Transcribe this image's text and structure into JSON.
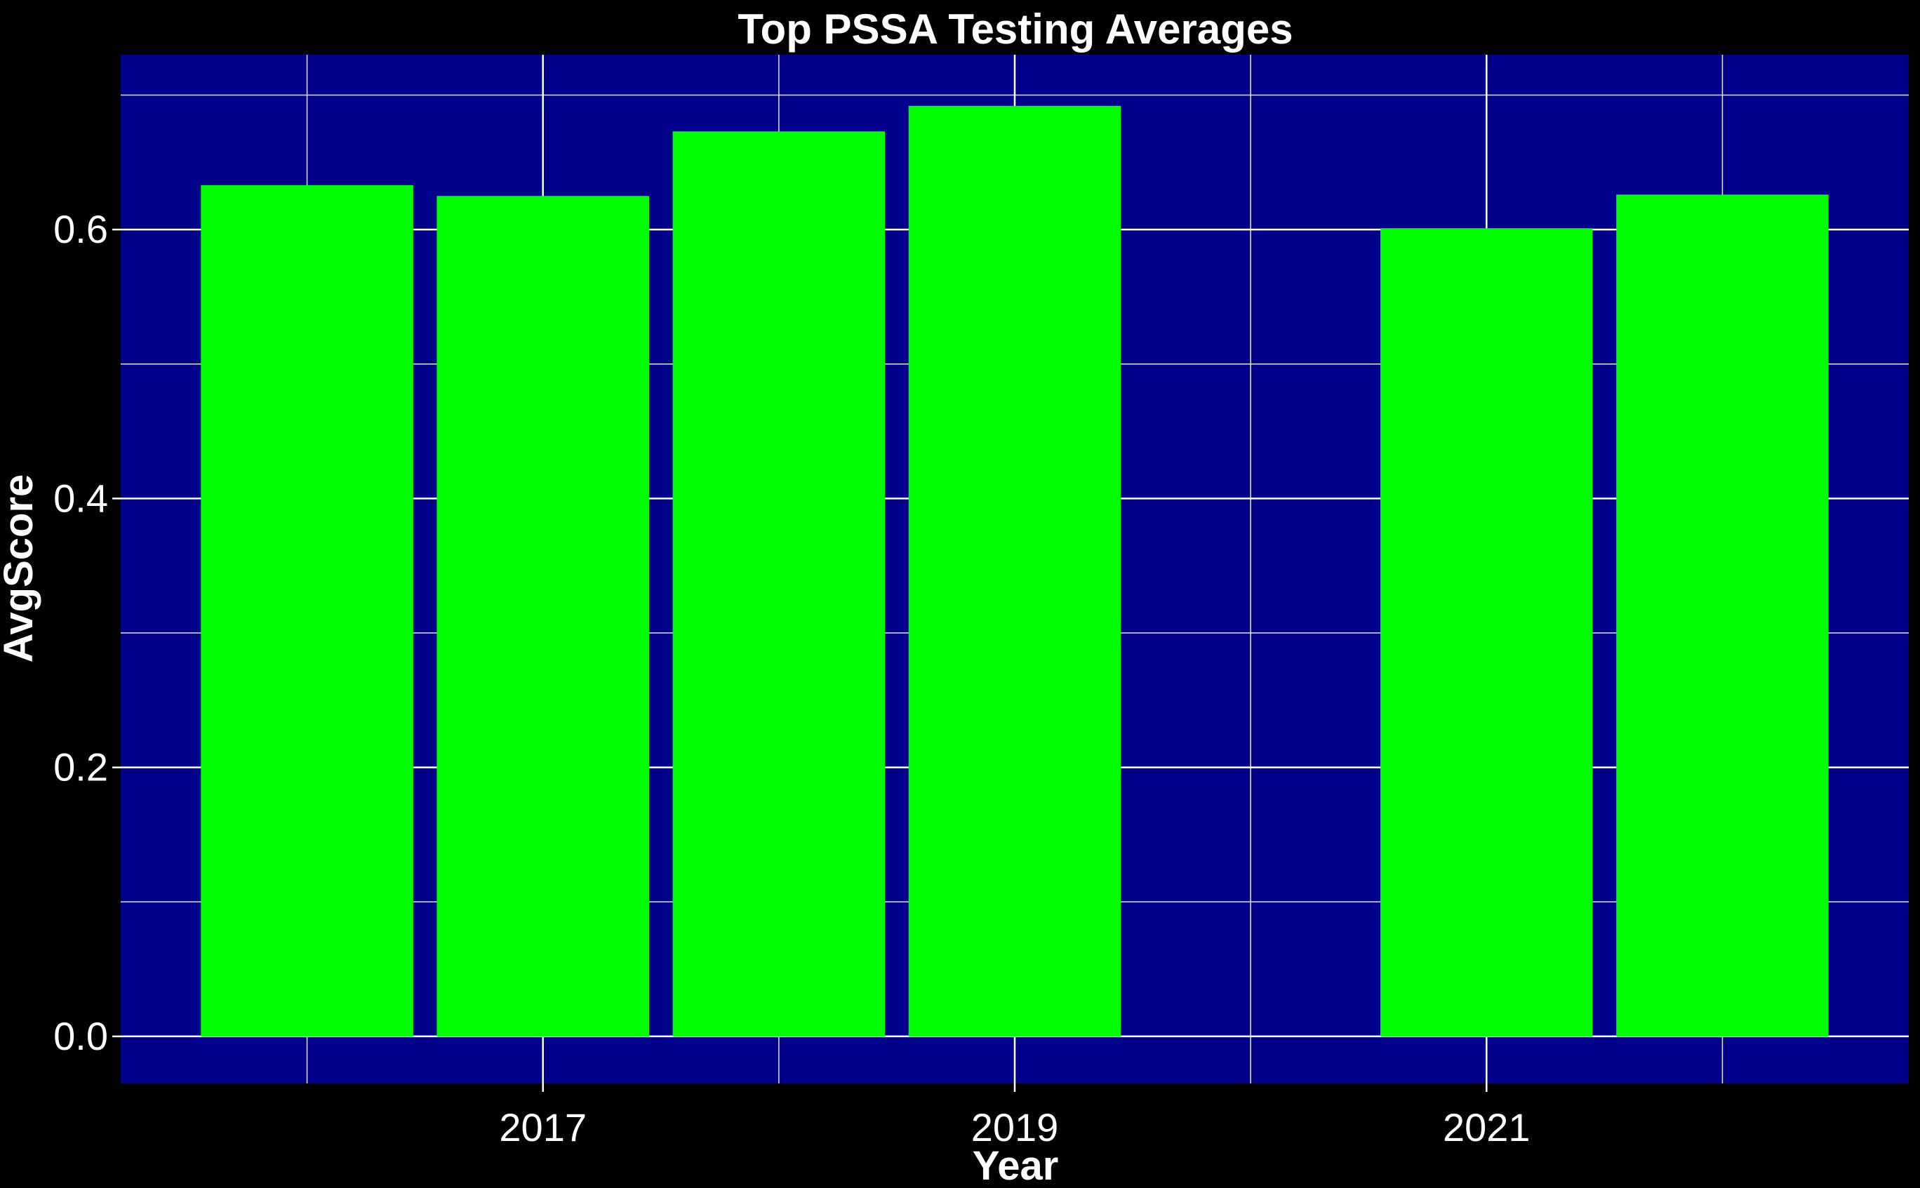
{
  "colors": {
    "page_background": "#000000",
    "panel_background": "#00008B",
    "bar_fill": "#00FF00",
    "grid": "#FFFFFF",
    "text": "#FFFFFF"
  },
  "chart_data": {
    "type": "bar",
    "title": "Top PSSA Testing Averages",
    "xlabel": "Year",
    "ylabel": "AvgScore",
    "x": [
      2016,
      2017,
      2018,
      2019,
      2021,
      2022
    ],
    "values": [
      0.633,
      0.625,
      0.673,
      0.692,
      0.601,
      0.626
    ],
    "xlim": [
      2015.21,
      2022.79
    ],
    "ylim": [
      -0.035,
      0.73
    ],
    "x_ticks": [
      2017,
      2019,
      2021
    ],
    "x_tick_labels": [
      "2017",
      "2019",
      "2021"
    ],
    "y_ticks": [
      0.0,
      0.2,
      0.4,
      0.6
    ],
    "y_tick_labels": [
      "0.0",
      "0.2",
      "0.4",
      "0.6"
    ],
    "x_minor_gridlines": [
      2016,
      2018,
      2020,
      2022
    ],
    "y_minor_gridlines": [
      0.1,
      0.3,
      0.5,
      0.7
    ],
    "grid": true,
    "legend": "none"
  }
}
